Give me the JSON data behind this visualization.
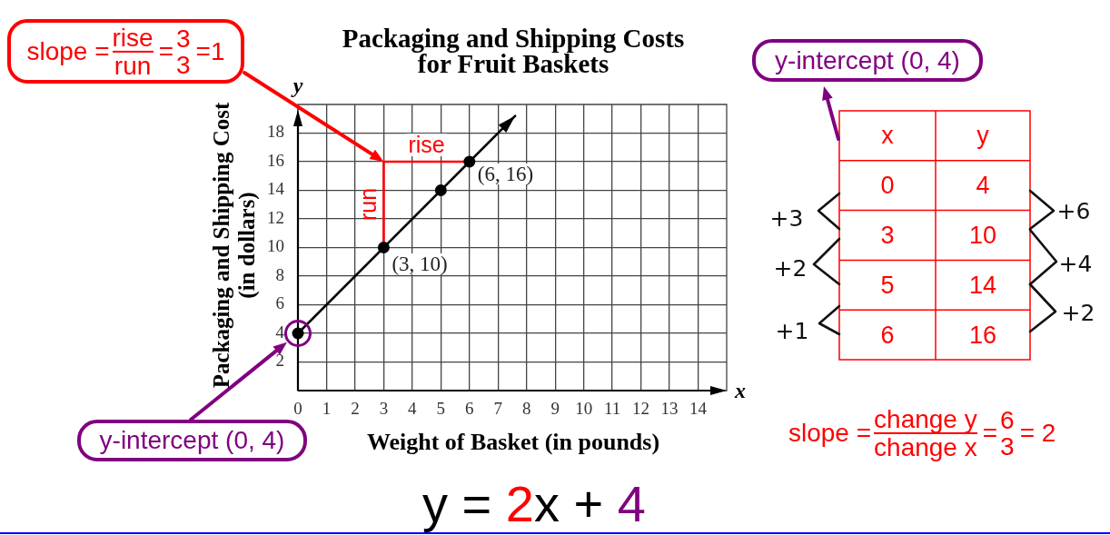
{
  "chart_data": {
    "type": "line",
    "title": "Packaging and Shipping Costs for Fruit Baskets",
    "xlabel": "Weight of Basket (in pounds)",
    "ylabel": "Packaging and Shipping Cost (in dollars)",
    "xlim": [
      0,
      15
    ],
    "ylim": [
      0,
      20
    ],
    "xticks": [
      0,
      1,
      2,
      3,
      4,
      5,
      6,
      7,
      8,
      9,
      10,
      11,
      12,
      13,
      14
    ],
    "yticks": [
      2,
      4,
      6,
      8,
      10,
      12,
      14,
      16,
      18
    ],
    "grid": true,
    "series": [
      {
        "color": "#000000",
        "x": [
          0,
          7.6
        ],
        "values": [
          4,
          19.2
        ]
      },
      {
        "color": "#ff0000",
        "x": [
          3,
          3,
          6
        ],
        "values": [
          10,
          16,
          16
        ]
      },
      {
        "type": "scatter",
        "color": "#000000",
        "marker": "circle",
        "x": [
          0,
          3,
          5,
          6
        ],
        "values": [
          4,
          10,
          14,
          16
        ]
      }
    ],
    "annotations": [
      "slope =",
      "rise",
      "run",
      "=",
      "3",
      "3",
      "=1",
      {
        "text": "rise",
        "x": 4.5,
        "y": 16
      },
      {
        "text": "run",
        "x": 3,
        "y": 13
      },
      {
        "text": "(3, 10)",
        "x": 3,
        "y": 10
      },
      {
        "text": "(6, 16)",
        "x": 6,
        "y": 16
      },
      "y-intercept (0, 4)",
      "y-intercept (0, 4)",
      "x",
      "y",
      "x",
      "y",
      "0",
      "4",
      "3",
      "10",
      "5",
      "14",
      "6",
      "16",
      "+3",
      "+2",
      "+1",
      "+6",
      "+4",
      "+2",
      "slope =",
      "change y",
      "change x",
      "=",
      "6",
      "3",
      "= 2",
      "y = 2x + 4"
    ]
  }
}
